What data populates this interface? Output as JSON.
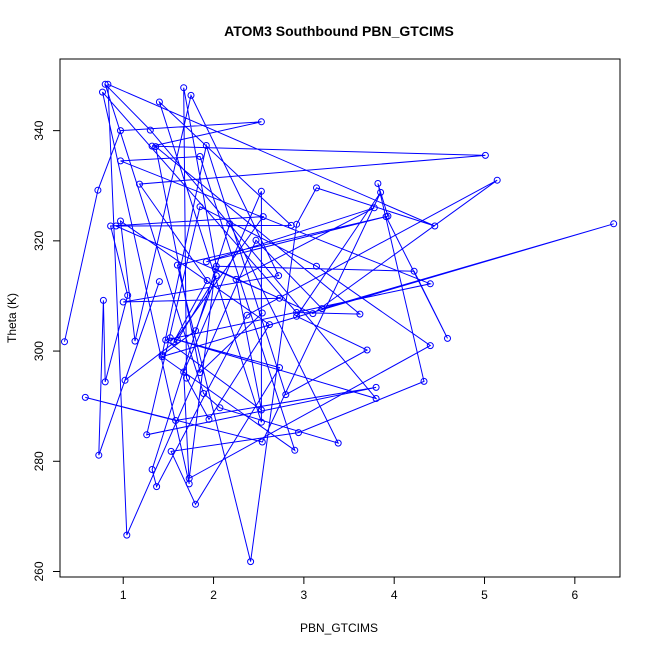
{
  "chart_data": {
    "type": "line",
    "title": "ATOM3 Southbound PBN_GTCIMS",
    "xlabel": "PBN_GTCIMS",
    "ylabel": "Theta (K)",
    "xlim": [
      0.3,
      6.5
    ],
    "ylim": [
      259,
      353
    ],
    "xticks": [
      1,
      2,
      3,
      4,
      5,
      6
    ],
    "yticks": [
      260,
      280,
      300,
      320,
      340
    ],
    "grid": false,
    "colors": {
      "series": "#0000ff"
    },
    "series": [
      {
        "points": [
          [
            0.35,
            301.7
          ],
          [
            0.72,
            329.2
          ],
          [
            0.97,
            340.0
          ],
          [
            2.53,
            341.6
          ],
          [
            1.32,
            337.2
          ],
          [
            5.01,
            335.5
          ],
          [
            1.18,
            330.3
          ],
          [
            1.93,
            312.8
          ],
          [
            1.56,
            301.7
          ],
          [
            2.55,
            324.4
          ],
          [
            0.86,
            322.7
          ],
          [
            1.05,
            310.1
          ],
          [
            0.8,
            294.4
          ],
          [
            0.78,
            309.2
          ],
          [
            0.73,
            281.1
          ],
          [
            1.4,
            312.6
          ],
          [
            1.02,
            294.7
          ],
          [
            1.6,
            302.0
          ],
          [
            2.03,
            313.7
          ],
          [
            1.8,
            303.7
          ],
          [
            1.43,
            299.3
          ],
          [
            1.92,
            337.3
          ],
          [
            2.8,
            292.1
          ],
          [
            3.7,
            300.2
          ],
          [
            2.92,
            306.3
          ],
          [
            3.85,
            328.8
          ],
          [
            2.54,
            283.5
          ],
          [
            0.58,
            291.6
          ],
          [
            1.58,
            287.4
          ],
          [
            3.8,
            293.4
          ],
          [
            1.26,
            284.8
          ],
          [
            1.85,
            326.2
          ],
          [
            3.14,
            315.4
          ],
          [
            4.4,
            301.0
          ],
          [
            1.73,
            276.9
          ],
          [
            2.02,
            314.9
          ],
          [
            3.1,
            306.8
          ],
          [
            5.14,
            331.0
          ],
          [
            2.37,
            306.5
          ],
          [
            1.37,
            275.4
          ],
          [
            1.32,
            278.5
          ],
          [
            2.18,
            323.1
          ],
          [
            3.38,
            283.3
          ],
          [
            2.07,
            289.7
          ],
          [
            1.89,
            292.3
          ],
          [
            0.8,
            348.4
          ],
          [
            1.3,
            340.1
          ],
          [
            3.8,
            291.4
          ],
          [
            1.52,
            302.4
          ],
          [
            2.73,
            297.0
          ],
          [
            1.8,
            272.2
          ],
          [
            1.53,
            281.8
          ],
          [
            2.94,
            285.2
          ],
          [
            4.33,
            294.5
          ],
          [
            3.82,
            330.4
          ],
          [
            3.93,
            324.5
          ],
          [
            1.6,
            315.6
          ],
          [
            2.41,
            261.8
          ],
          [
            2.92,
            323.0
          ],
          [
            3.14,
            329.6
          ],
          [
            4.45,
            322.7
          ],
          [
            0.83,
            348.4
          ],
          [
            1.04,
            266.6
          ],
          [
            2.47,
            320.1
          ],
          [
            3.2,
            307.7
          ],
          [
            6.43,
            323.1
          ],
          [
            1.43,
            299.0
          ],
          [
            2.9,
            282.0
          ],
          [
            1.85,
            335.3
          ],
          [
            0.97,
            334.5
          ],
          [
            4.4,
            312.2
          ],
          [
            1.47,
            302.0
          ],
          [
            2.53,
            289.3
          ],
          [
            2.25,
            313.0
          ],
          [
            3.78,
            326.0
          ],
          [
            1.92,
            316.2
          ],
          [
            3.91,
            324.4
          ],
          [
            4.59,
            302.3
          ],
          [
            4.22,
            314.5
          ],
          [
            2.03,
            315.4
          ],
          [
            1.67,
            347.8
          ],
          [
            1.7,
            295.1
          ],
          [
            1.95,
            287.6
          ],
          [
            2.62,
            304.8
          ],
          [
            0.97,
            323.6
          ],
          [
            1.13,
            301.8
          ],
          [
            1.75,
            346.4
          ],
          [
            2.72,
            313.7
          ],
          [
            1.0,
            308.9
          ],
          [
            2.73,
            309.6
          ],
          [
            0.92,
            322.7
          ],
          [
            2.86,
            322.8
          ],
          [
            1.4,
            345.2
          ],
          [
            2.53,
            287.1
          ],
          [
            2.53,
            329.0
          ],
          [
            1.67,
            296.2
          ],
          [
            1.73,
            275.9
          ],
          [
            0.77,
            347.0
          ],
          [
            2.92,
            307.0
          ],
          [
            3.62,
            306.7
          ],
          [
            1.36,
            337.1
          ],
          [
            1.85,
            296.1
          ],
          [
            2.54,
            306.9
          ]
        ]
      }
    ]
  }
}
